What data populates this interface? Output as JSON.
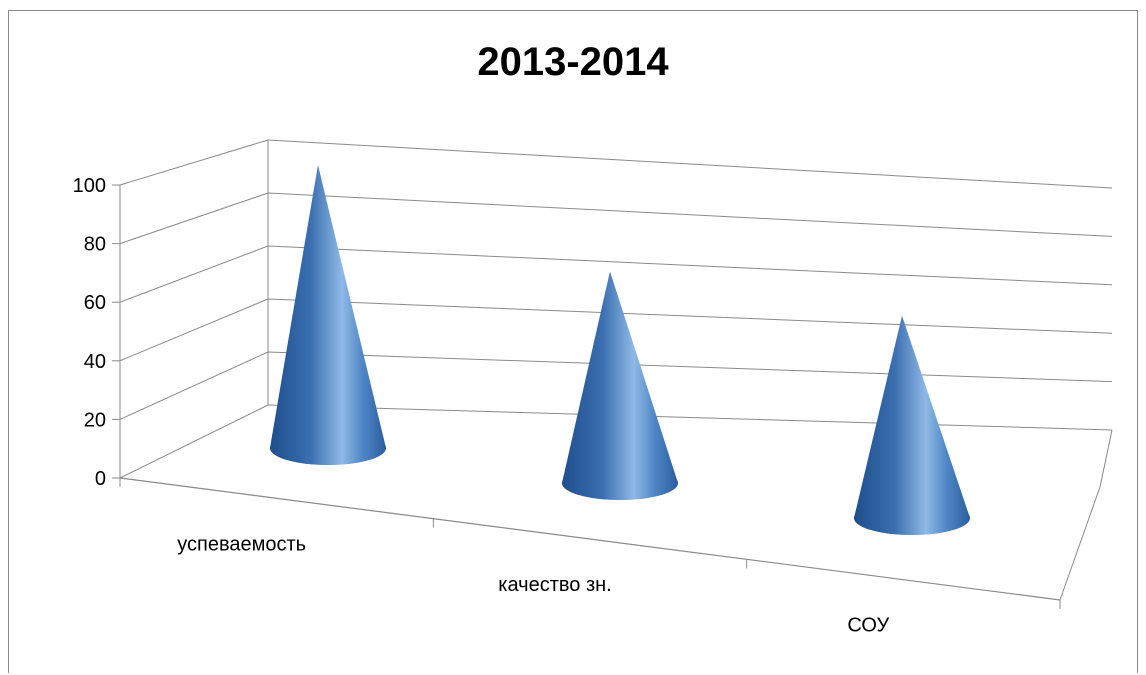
{
  "chart_data": {
    "type": "bar",
    "subtype": "3d-cone",
    "title": "2013-2014",
    "categories": [
      "успеваемость",
      "качество зн.",
      "СОУ"
    ],
    "series": [
      {
        "values": [
          100,
          74,
          70
        ]
      }
    ],
    "ylim": [
      0,
      100
    ],
    "yticks": [
      "0",
      "20",
      "40",
      "60",
      "80",
      "100"
    ],
    "grid": true,
    "legend": "none",
    "colors": {
      "cone_dark": "#1f4e8c",
      "cone_mid": "#4f86c6",
      "cone_light": "#9cc1ea",
      "grid": "#8a8a8a"
    }
  }
}
